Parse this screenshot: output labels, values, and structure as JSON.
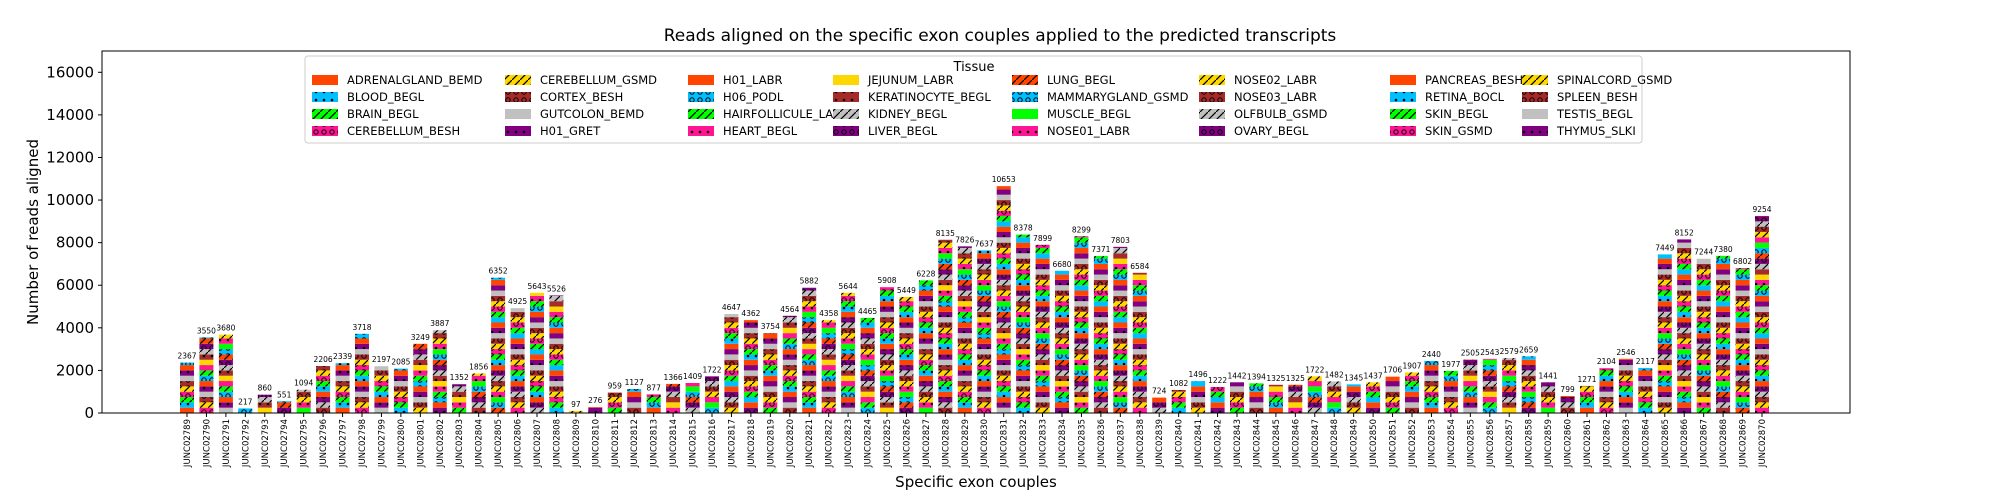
{
  "chart_data": {
    "type": "bar",
    "stacked": true,
    "title": "Reads aligned on the specific exon couples applied to the predicted transcripts",
    "xlabel": "Specific exon couples",
    "ylabel": "Number of reads aligned",
    "ylim": [
      0,
      17000
    ],
    "yticks": [
      0,
      2000,
      4000,
      6000,
      8000,
      10000,
      12000,
      14000,
      16000
    ],
    "ytick_labels": [
      "0",
      "2000",
      "4000",
      "6000",
      "8000",
      "10000",
      "12000",
      "14000",
      "16000"
    ],
    "legend_title": "Tissue",
    "legend_position": "top-center",
    "categories": [
      "JUNC02789",
      "JUNC02790",
      "JUNC02791",
      "JUNC02792",
      "JUNC02793",
      "JUNC02794",
      "JUNC02795",
      "JUNC02796",
      "JUNC02797",
      "JUNC02798",
      "JUNC02799",
      "JUNC02800",
      "JUNC02801",
      "JUNC02802",
      "JUNC02803",
      "JUNC02804",
      "JUNC02805",
      "JUNC02806",
      "JUNC02807",
      "JUNC02808",
      "JUNC02809",
      "JUNC02810",
      "JUNC02811",
      "JUNC02812",
      "JUNC02813",
      "JUNC02814",
      "JUNC02815",
      "JUNC02816",
      "JUNC02817",
      "JUNC02818",
      "JUNC02819",
      "JUNC02820",
      "JUNC02821",
      "JUNC02822",
      "JUNC02823",
      "JUNC02824",
      "JUNC02825",
      "JUNC02826",
      "JUNC02827",
      "JUNC02828",
      "JUNC02829",
      "JUNC02830",
      "JUNC02831",
      "JUNC02832",
      "JUNC02833",
      "JUNC02834",
      "JUNC02835",
      "JUNC02836",
      "JUNC02837",
      "JUNC02838",
      "JUNC02839",
      "JUNC02840",
      "JUNC02841",
      "JUNC02842",
      "JUNC02843",
      "JUNC02844",
      "JUNC02845",
      "JUNC02846",
      "JUNC02847",
      "JUNC02848",
      "JUNC02849",
      "JUNC02850",
      "JUNC02851",
      "JUNC02852",
      "JUNC02853",
      "JUNC02854",
      "JUNC02855",
      "JUNC02856",
      "JUNC02857",
      "JUNC02858",
      "JUNC02859",
      "JUNC02860",
      "JUNC02861",
      "JUNC02862",
      "JUNC02863",
      "JUNC02864",
      "JUNC02865",
      "JUNC02866",
      "JUNC02867",
      "JUNC02868",
      "JUNC02869",
      "JUNC02870"
    ],
    "totals": [
      2367,
      3550,
      3680,
      217,
      860,
      551,
      1094,
      2206,
      2339,
      3718,
      2197,
      2085,
      3249,
      3887,
      1352,
      1856,
      6352,
      4925,
      5643,
      5526,
      97,
      276,
      959,
      1127,
      877,
      1366,
      1409,
      1722,
      4647,
      4362,
      3754,
      4564,
      5882,
      4358,
      5644,
      4465,
      5908,
      5449,
      6228,
      8135,
      7826,
      7637,
      10653,
      8378,
      7899,
      6680,
      8299,
      7371,
      7803,
      6584,
      724,
      1082,
      1496,
      1222,
      1442,
      1394,
      1325,
      1325,
      1722,
      1482,
      1345,
      1437,
      1706,
      1907,
      2440,
      1977,
      2505,
      2543,
      2579,
      2659,
      1441,
      799,
      1271,
      2104,
      2546,
      2117,
      7449,
      8152,
      7244,
      7380,
      6802,
      9254
    ],
    "total_labels": [
      "2367",
      "3550",
      "3680",
      "217",
      "860",
      "551",
      "1094",
      "2206",
      "2339",
      "3718",
      "2197",
      "2085",
      "3249",
      "3887",
      "1352",
      "1856",
      "6352",
      "4925",
      "5643",
      "5526",
      "97",
      "276",
      "959",
      "1127",
      "877",
      "1366",
      "1409",
      "1722",
      "4647",
      "4362",
      "3754",
      "4564",
      "5882",
      "4358",
      "5644",
      "4465",
      "5908",
      "5449",
      "6228",
      "8135",
      "7826",
      "7637",
      "10653",
      "8378",
      "7899",
      "6680",
      "8299",
      "7371",
      "7803",
      "6584",
      "724",
      "1082",
      "1496",
      "1222",
      "1442",
      "1394",
      "1325",
      "1325",
      "1722",
      "1482",
      "1345",
      "1437",
      "1706",
      "1907",
      "2440",
      "1977",
      "2505",
      "2543",
      "2579",
      "2659",
      "1441",
      "799",
      "1271",
      "2104",
      "2546",
      "2117",
      "7449",
      "8152",
      "7244",
      "7380",
      "6802",
      "9254"
    ],
    "series": [
      {
        "name": "ADRENALGLAND_BEMD",
        "color": "#ff4500",
        "hatch": "none"
      },
      {
        "name": "BLOOD_BEGL",
        "color": "#00bfff",
        "hatch": "dot"
      },
      {
        "name": "BRAIN_BEGL",
        "color": "#00ff00",
        "hatch": "slash"
      },
      {
        "name": "CEREBELLUM_BESH",
        "color": "#ff1493",
        "hatch": "ring"
      },
      {
        "name": "CEREBELLUM_GSMD",
        "color": "#ffd700",
        "hatch": "slash"
      },
      {
        "name": "CORTEX_BESH",
        "color": "#a52a2a",
        "hatch": "ring"
      },
      {
        "name": "GUTCOLON_BEMD",
        "color": "#c0c0c0",
        "hatch": "none"
      },
      {
        "name": "H01_GRET",
        "color": "#800080",
        "hatch": "dot"
      },
      {
        "name": "H01_LABR",
        "color": "#ff4500",
        "hatch": "none"
      },
      {
        "name": "H06_PODL",
        "color": "#00bfff",
        "hatch": "ring"
      },
      {
        "name": "HAIRFOLLICULE_LABR",
        "color": "#00ff00",
        "hatch": "slash"
      },
      {
        "name": "HEART_BEGL",
        "color": "#ff1493",
        "hatch": "dot"
      },
      {
        "name": "JEJUNUM_LABR",
        "color": "#ffd700",
        "hatch": "none"
      },
      {
        "name": "KERATINOCYTE_BEGL",
        "color": "#a52a2a",
        "hatch": "dot"
      },
      {
        "name": "KIDNEY_BEGL",
        "color": "#c0c0c0",
        "hatch": "slash"
      },
      {
        "name": "LIVER_BEGL",
        "color": "#800080",
        "hatch": "ring"
      },
      {
        "name": "LUNG_BEGL",
        "color": "#ff4500",
        "hatch": "slash"
      },
      {
        "name": "MAMMARYGLAND_GSMD",
        "color": "#00bfff",
        "hatch": "ring"
      },
      {
        "name": "MUSCLE_BEGL",
        "color": "#00ff00",
        "hatch": "none"
      },
      {
        "name": "NOSE01_LABR",
        "color": "#ff1493",
        "hatch": "dot"
      },
      {
        "name": "NOSE02_LABR",
        "color": "#ffd700",
        "hatch": "slash"
      },
      {
        "name": "NOSE03_LABR",
        "color": "#a52a2a",
        "hatch": "ring"
      },
      {
        "name": "OLFBULB_GSMD",
        "color": "#c0c0c0",
        "hatch": "slash"
      },
      {
        "name": "OVARY_BEGL",
        "color": "#800080",
        "hatch": "ring"
      },
      {
        "name": "PANCREAS_BESH",
        "color": "#ff4500",
        "hatch": "none"
      },
      {
        "name": "RETINA_BOCL",
        "color": "#00bfff",
        "hatch": "dot"
      },
      {
        "name": "SKIN_BEGL",
        "color": "#00ff00",
        "hatch": "slash"
      },
      {
        "name": "SKIN_GSMD",
        "color": "#ff1493",
        "hatch": "ring"
      },
      {
        "name": "SPINALCORD_GSMD",
        "color": "#ffd700",
        "hatch": "slash"
      },
      {
        "name": "SPLEEN_BESH",
        "color": "#a52a2a",
        "hatch": "ring"
      },
      {
        "name": "TESTIS_BEGL",
        "color": "#c0c0c0",
        "hatch": "none"
      },
      {
        "name": "THYMUS_SLKI",
        "color": "#800080",
        "hatch": "dot"
      }
    ]
  }
}
